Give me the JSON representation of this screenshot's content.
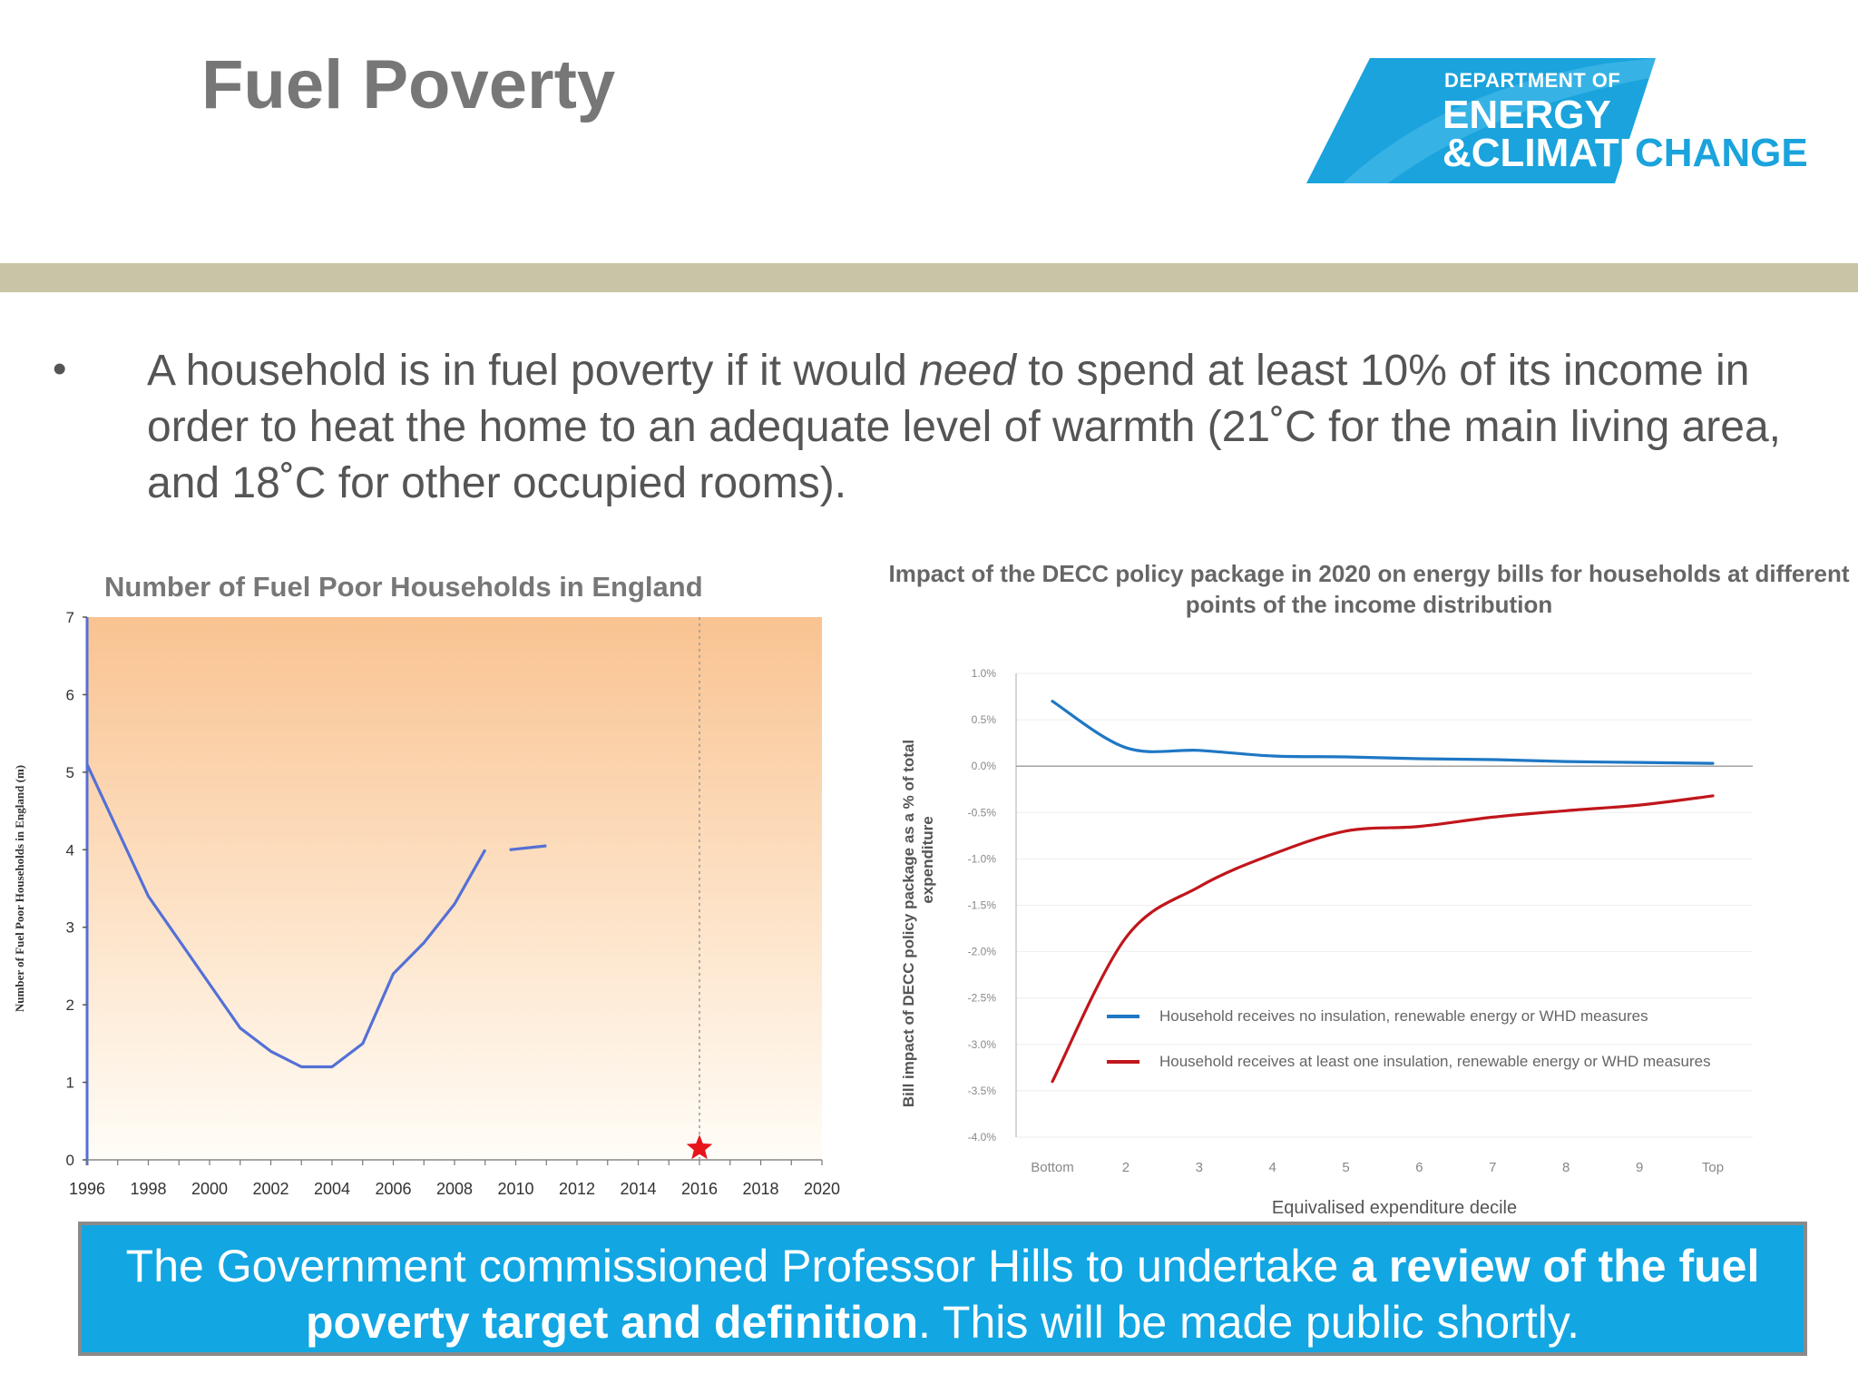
{
  "slide": {
    "title": "Fuel Poverty",
    "bullet_symbol": "•",
    "bullet": {
      "part1": "A household is in fuel poverty if it would ",
      "emphasis": "need",
      "part2": " to spend at least 10% of its income in order to heat the home to an adequate level of warmth (21˚C for the main living area, and 18˚C for other occupied rooms)."
    },
    "callout": {
      "part1": "The Government commissioned Professor Hills to undertake ",
      "bold": "a review of the fuel poverty target and definition",
      "part2": ". This will be made public shortly."
    }
  },
  "logo": {
    "line1": "DEPARTMENT OF",
    "line2": "ENERGY",
    "line3": "&CLIMATE",
    "line4": "CHANGE",
    "colors": {
      "blue": "#1aa3dc",
      "text": "#ffffff"
    }
  },
  "colors": {
    "title": "#777777",
    "body_text": "#555555",
    "divider": "#c8c5a6",
    "callout_bg": "#12a6e2",
    "chart1_line": "#5470d6",
    "chart1_marker": "#e8141c",
    "chart2_blue": "#1f77c4",
    "chart2_red": "#c0161c"
  },
  "chart_data": [
    {
      "type": "line",
      "title": "Number of Fuel Poor Households in England",
      "ylabel": "Number of Fuel Poor Households in England (m)",
      "xlabel": "",
      "xlim": [
        1996,
        2020
      ],
      "ylim": [
        0,
        7
      ],
      "x_ticks": [
        "1996",
        "1998",
        "2000",
        "2002",
        "2004",
        "2006",
        "2008",
        "2010",
        "2012",
        "2014",
        "2016",
        "2018",
        "2020"
      ],
      "y_ticks": [
        "0",
        "1",
        "2",
        "3",
        "4",
        "5",
        "6",
        "7"
      ],
      "series": [
        {
          "segments": [
            {
              "x": [
                1996,
                1998,
                2001,
                2002,
                2003,
                2004,
                2005,
                2006,
                2007,
                2008,
                2009
              ],
              "y": [
                5.1,
                3.4,
                1.7,
                1.4,
                1.2,
                1.2,
                1.5,
                2.4,
                2.8,
                3.3,
                4.0
              ]
            },
            {
              "x": [
                2009.8,
                2011
              ],
              "y": [
                4.0,
                4.05
              ]
            }
          ]
        }
      ],
      "marker": {
        "x": 2016,
        "y": 0.15,
        "shape": "star"
      },
      "reference_line": {
        "x": 2016,
        "style": "dotted"
      },
      "background": "gradient-orange",
      "grid": false
    },
    {
      "type": "line",
      "title": "Impact of the DECC policy package in 2020 on energy bills for households at different points of the income distribution",
      "ylabel": "Bill impact of DECC policy package as a % of total expenditure",
      "xlabel": "Equivalised expenditure decile",
      "categories": [
        "Bottom",
        "2",
        "3",
        "4",
        "5",
        "6",
        "7",
        "8",
        "9",
        "Top"
      ],
      "y_ticks": [
        "1.0%",
        "0.5%",
        "0.0%",
        "-0.5%",
        "-1.0%",
        "-1.5%",
        "-2.0%",
        "-2.5%",
        "-3.0%",
        "-3.5%",
        "-4.0%"
      ],
      "ylim": [
        -4.0,
        1.0
      ],
      "series": [
        {
          "name": "Household receives no insulation, renewable energy or WHD measures",
          "color": "#1f77c4",
          "values": [
            0.7,
            0.2,
            0.17,
            0.11,
            0.1,
            0.08,
            0.07,
            0.05,
            0.04,
            0.03
          ]
        },
        {
          "name": "Household receives at least one insulation, renewable energy or WHD measures",
          "color": "#c0161c",
          "values": [
            -3.4,
            -1.85,
            -1.3,
            -0.95,
            -0.7,
            -0.65,
            -0.55,
            -0.48,
            -0.42,
            -0.32
          ]
        }
      ],
      "legend": "bottom-right",
      "grid": true
    }
  ]
}
